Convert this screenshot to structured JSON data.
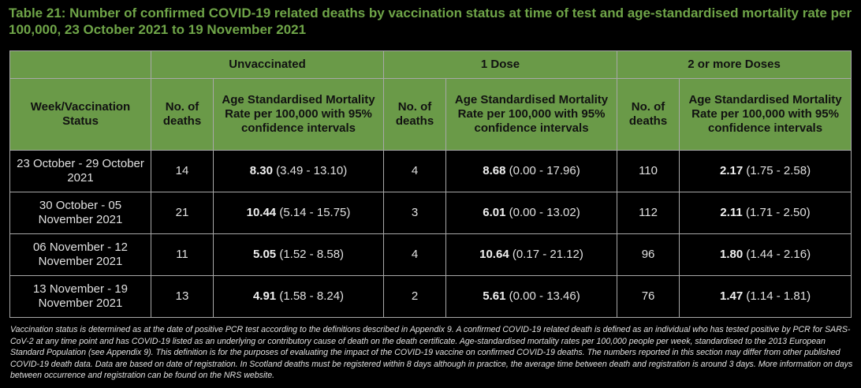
{
  "title": "Table 21: Number of confirmed COVID-19 related deaths by vaccination status at time of test and age-standardised mortality rate per 100,000, 23 October 2021 to 19 November 2021",
  "groups": [
    "Unvaccinated",
    "1 Dose",
    "2 or more Doses"
  ],
  "headers": {
    "week": "Week/Vaccination Status",
    "deaths": "No. of deaths",
    "rate": "Age Standardised Mortality Rate per 100,000 with 95% confidence intervals"
  },
  "rows": [
    {
      "week": "23 October - 29 October 2021",
      "cells": [
        {
          "deaths": "14",
          "rate": "8.30",
          "ci": "(3.49 - 13.10)"
        },
        {
          "deaths": "4",
          "rate": "8.68",
          "ci": "(0.00 - 17.96)"
        },
        {
          "deaths": "110",
          "rate": "2.17",
          "ci": "(1.75 - 2.58)"
        }
      ]
    },
    {
      "week": "30 October - 05 November 2021",
      "cells": [
        {
          "deaths": "21",
          "rate": "10.44",
          "ci": "(5.14 - 15.75)"
        },
        {
          "deaths": "3",
          "rate": "6.01",
          "ci": "(0.00 - 13.02)"
        },
        {
          "deaths": "112",
          "rate": "2.11",
          "ci": "(1.71 - 2.50)"
        }
      ]
    },
    {
      "week": "06 November - 12 November 2021",
      "cells": [
        {
          "deaths": "11",
          "rate": "5.05",
          "ci": "(1.52 - 8.58)"
        },
        {
          "deaths": "4",
          "rate": "10.64",
          "ci": "(0.17 - 21.12)"
        },
        {
          "deaths": "96",
          "rate": "1.80",
          "ci": "(1.44 - 2.16)"
        }
      ]
    },
    {
      "week": "13 November - 19 November 2021",
      "cells": [
        {
          "deaths": "13",
          "rate": "4.91",
          "ci": "(1.58 - 8.24)"
        },
        {
          "deaths": "2",
          "rate": "5.61",
          "ci": "(0.00 - 13.46)"
        },
        {
          "deaths": "76",
          "rate": "1.47",
          "ci": "(1.14 - 1.81)"
        }
      ]
    }
  ],
  "footnote": "Vaccination status is determined as at the date of positive PCR test according to the definitions described in Appendix 9. A confirmed COVID-19 related death is defined as an individual who has tested positive by PCR for SARS-CoV-2 at any time point and has COVID-19 listed as an underlying or contributory cause of death on the death certificate. Age-standardised mortality rates per 100,000 people per week, standardised to the 2013 European Standard Population (see Appendix 9). This definition is for the purposes of evaluating the impact of the COVID-19 vaccine on confirmed COVID-19 deaths. The numbers reported in this section may differ from other published COVID-19 death data. Data are based on date of registration. In Scotland deaths must be registered within 8 days although in practice, the average time between death and registration is around 3 days. More information on days between occurrence and registration can be found on the NRS website."
}
